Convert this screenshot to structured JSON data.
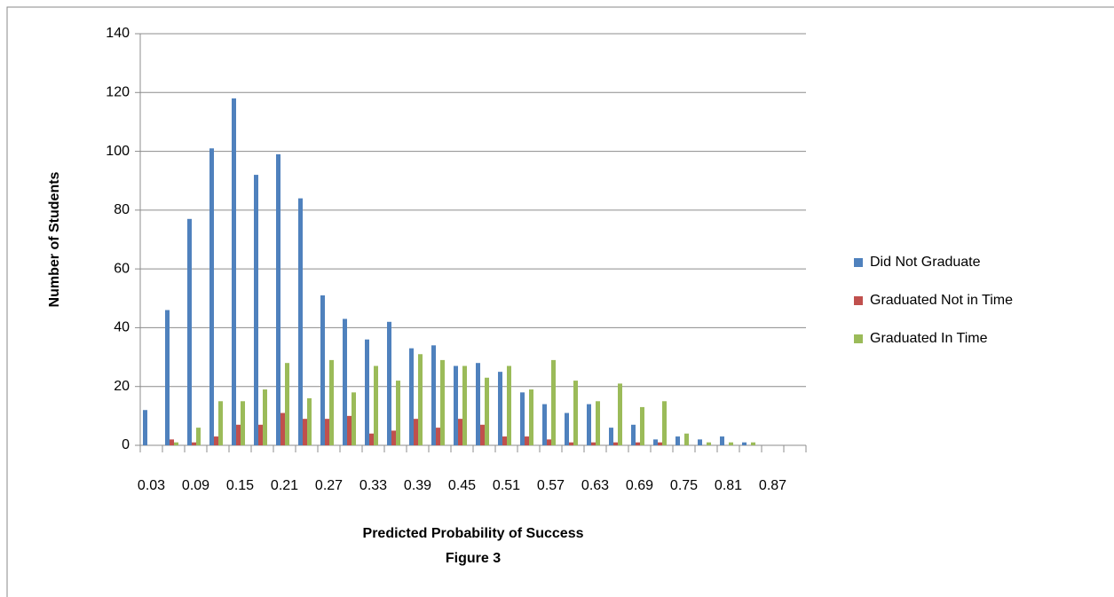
{
  "chart_data": {
    "type": "bar",
    "x_label": "Predicted Probability of Success",
    "caption": "Figure 3",
    "y_label": "Number of Students",
    "categories": [
      "0.03",
      null,
      "0.09",
      null,
      "0.15",
      null,
      "0.21",
      null,
      "0.27",
      null,
      "0.33",
      null,
      "0.39",
      null,
      "0.45",
      null,
      "0.51",
      null,
      "0.57",
      null,
      "0.63",
      null,
      "0.69",
      null,
      "0.75",
      null,
      "0.81",
      null,
      "0.87",
      null
    ],
    "series": [
      {
        "name": "Did Not Graduate",
        "color": "#4f81bd",
        "values": [
          12,
          46,
          77,
          101,
          118,
          92,
          99,
          84,
          51,
          43,
          36,
          42,
          33,
          34,
          27,
          28,
          25,
          18,
          14,
          11,
          14,
          6,
          7,
          2,
          3,
          2,
          3,
          1,
          0,
          0
        ]
      },
      {
        "name": "Graduated Not in Time",
        "color": "#c0504d",
        "values": [
          0,
          2,
          1,
          3,
          7,
          7,
          11,
          9,
          9,
          10,
          4,
          5,
          9,
          6,
          9,
          7,
          3,
          3,
          2,
          1,
          1,
          1,
          1,
          1,
          0,
          0,
          0,
          0,
          0,
          0
        ]
      },
      {
        "name": "Graduated In Time",
        "color": "#9bbb59",
        "values": [
          0,
          1,
          6,
          15,
          15,
          19,
          28,
          16,
          29,
          18,
          27,
          22,
          31,
          29,
          27,
          23,
          27,
          19,
          29,
          22,
          15,
          21,
          13,
          15,
          4,
          1,
          1,
          1,
          0,
          0
        ]
      }
    ],
    "ylim": [
      0,
      140
    ],
    "yticks": [
      0,
      20,
      40,
      60,
      80,
      100,
      120,
      140
    ],
    "grid": true,
    "legend": "right"
  }
}
